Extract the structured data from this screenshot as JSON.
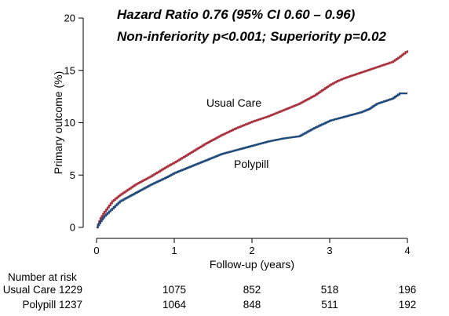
{
  "chart_data": {
    "type": "line",
    "title": "",
    "annotations": [
      "Hazard Ratio 0.76 (95% CI 0.60 – 0.96)",
      "Non-inferiority p<0.001; Superiority p=0.02"
    ],
    "xlabel": "Follow-up (years)",
    "ylabel": "Primary outcome (%)",
    "xlim": [
      0,
      4
    ],
    "ylim": [
      0,
      20
    ],
    "xticks": [
      "0",
      "1",
      "2",
      "3",
      "4"
    ],
    "yticks": [
      "0",
      "5",
      "10",
      "15",
      "20"
    ],
    "grid": false,
    "legend": "none",
    "step": true,
    "series": [
      {
        "name": "Usual Care",
        "color": "#a8323e",
        "x": [
          0,
          0.05,
          0.1,
          0.2,
          0.3,
          0.5,
          0.7,
          0.9,
          1.0,
          1.2,
          1.4,
          1.6,
          1.8,
          2.0,
          2.2,
          2.4,
          2.6,
          2.8,
          3.0,
          3.1,
          3.2,
          3.4,
          3.6,
          3.8,
          3.9,
          3.95,
          4.0
        ],
        "y": [
          0,
          0.9,
          1.5,
          2.5,
          3.1,
          4.1,
          4.9,
          5.8,
          6.2,
          7.1,
          8.0,
          8.8,
          9.5,
          10.1,
          10.6,
          11.2,
          11.8,
          12.6,
          13.6,
          14.0,
          14.3,
          14.8,
          15.3,
          15.8,
          16.3,
          16.6,
          16.9
        ]
      },
      {
        "name": "Polypill",
        "color": "#1f4a7a",
        "x": [
          0,
          0.05,
          0.1,
          0.2,
          0.3,
          0.5,
          0.7,
          0.9,
          1.0,
          1.2,
          1.4,
          1.6,
          1.8,
          2.0,
          2.2,
          2.4,
          2.6,
          2.8,
          3.0,
          3.2,
          3.4,
          3.5,
          3.6,
          3.8,
          3.9,
          4.0
        ],
        "y": [
          0,
          0.6,
          1.1,
          1.8,
          2.5,
          3.3,
          4.1,
          4.8,
          5.2,
          5.8,
          6.4,
          7.0,
          7.4,
          7.8,
          8.2,
          8.5,
          8.7,
          9.5,
          10.2,
          10.6,
          11.0,
          11.3,
          11.8,
          12.3,
          12.8,
          12.8
        ]
      }
    ],
    "number_at_risk": {
      "title": "Number at risk",
      "rows": [
        {
          "label": "Usual Care 1229",
          "values": [
            "1075",
            "852",
            "518",
            "196"
          ]
        },
        {
          "label": "Polypill 1237",
          "values": [
            "1064",
            "848",
            "511",
            "192"
          ]
        }
      ]
    }
  }
}
